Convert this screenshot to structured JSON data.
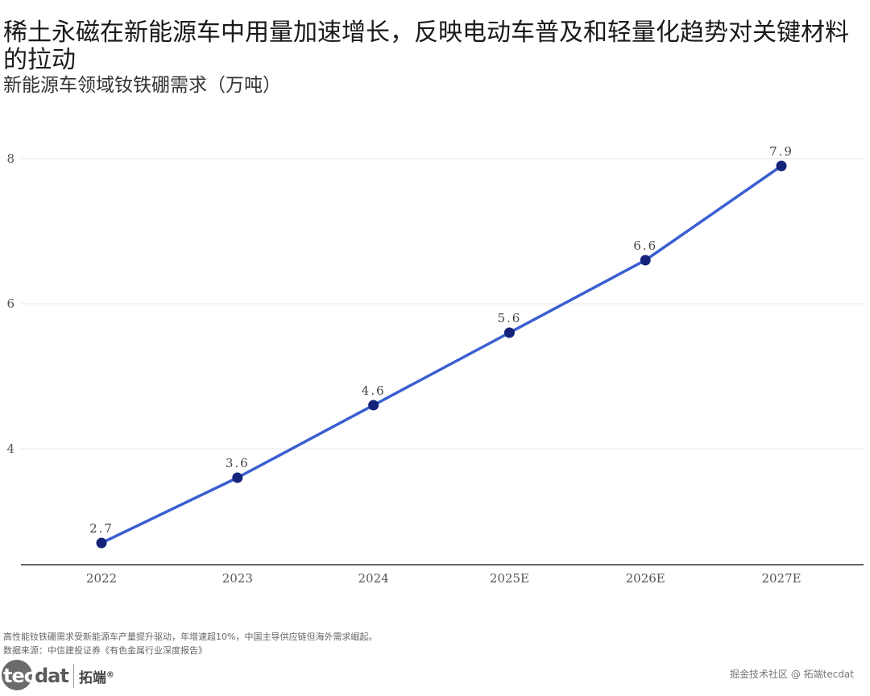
{
  "header": {
    "title": "稀土永磁在新能源车中用量加速增长，反映电动车普及和轻量化趋势对关键材料的拉动",
    "subtitle": "新能源车领域钕铁硼需求（万吨）"
  },
  "chart_data": {
    "type": "line",
    "title": "稀土永磁在新能源车中用量加速增长，反映电动车普及和轻量化趋势对关键材料的拉动",
    "subtitle": "新能源车领域钕铁硼需求（万吨）",
    "categories": [
      "2022",
      "2023",
      "2024",
      "2025E",
      "2026E",
      "2027E"
    ],
    "series": [
      {
        "values": [
          2.7,
          3.6,
          4.6,
          5.6,
          6.6,
          7.9
        ],
        "labels": [
          "2.7",
          "3.6",
          "4.6",
          "5.6",
          "6.6",
          "7.9"
        ]
      }
    ],
    "yticks": [
      4,
      6,
      8
    ],
    "ylim": [
      2.4,
      8.3
    ],
    "grid": "horizontal",
    "legend": "none",
    "line_color": "#3a5fd1",
    "marker_color": "#14247a",
    "grid_color": "#e6e6e6",
    "axis_color": "#333333"
  },
  "footer": {
    "note": "高性能钕铁硼需求受新能源车产量提升驱动，年增速超10%，中国主导供应链但海外需求崛起。",
    "source": "数据来源：中信建投证券《有色金属行业深度报告》"
  },
  "branding": {
    "logo_tec": "tec",
    "logo_dat": "dat",
    "logo_cn": "拓端",
    "logo_reg": "®",
    "watermark": "掘金技术社区 @ 拓端tecdat"
  }
}
